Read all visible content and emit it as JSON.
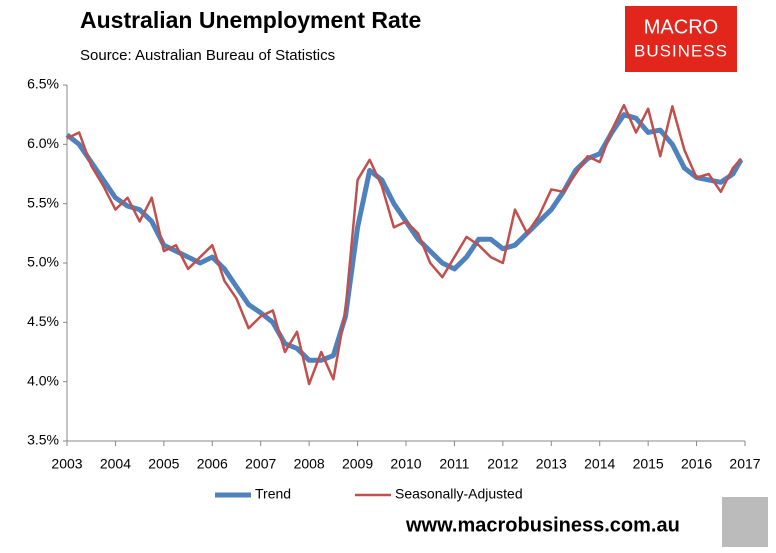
{
  "chart_data": {
    "type": "line",
    "title": "Australian Unemployment Rate",
    "subtitle": "Source: Australian Bureau of Statistics",
    "x": [
      2003,
      2003.25,
      2003.5,
      2003.75,
      2004,
      2004.25,
      2004.5,
      2004.75,
      2005,
      2005.25,
      2005.5,
      2005.75,
      2006,
      2006.25,
      2006.5,
      2006.75,
      2007,
      2007.25,
      2007.5,
      2007.75,
      2008,
      2008.25,
      2008.5,
      2008.75,
      2009,
      2009.25,
      2009.5,
      2009.75,
      2010,
      2010.25,
      2010.5,
      2010.75,
      2011,
      2011.25,
      2011.5,
      2011.75,
      2012,
      2012.25,
      2012.5,
      2012.75,
      2013,
      2013.25,
      2013.5,
      2013.75,
      2014,
      2014.25,
      2014.5,
      2014.75,
      2015,
      2015.25,
      2015.5,
      2015.75,
      2016,
      2016.25,
      2016.5,
      2016.75,
      2016.92
    ],
    "series": [
      {
        "name": "Trend",
        "color": "#4f81bd",
        "width": 5,
        "values": [
          6.08,
          6.0,
          5.85,
          5.7,
          5.55,
          5.48,
          5.45,
          5.35,
          5.15,
          5.1,
          5.05,
          5.0,
          5.05,
          4.95,
          4.8,
          4.65,
          4.58,
          4.5,
          4.32,
          4.28,
          4.18,
          4.18,
          4.22,
          4.55,
          5.3,
          5.78,
          5.7,
          5.5,
          5.35,
          5.2,
          5.1,
          5.0,
          4.95,
          5.05,
          5.2,
          5.2,
          5.12,
          5.15,
          5.25,
          5.35,
          5.45,
          5.6,
          5.78,
          5.88,
          5.92,
          6.1,
          6.25,
          6.22,
          6.1,
          6.12,
          6.0,
          5.8,
          5.72,
          5.7,
          5.68,
          5.75,
          5.87
        ]
      },
      {
        "name": "Seasonally-Adjusted",
        "color": "#c0504d",
        "width": 2.5,
        "values": [
          6.05,
          6.1,
          5.82,
          5.65,
          5.45,
          5.55,
          5.35,
          5.55,
          5.1,
          5.15,
          4.95,
          5.05,
          5.15,
          4.85,
          4.7,
          4.45,
          4.55,
          4.6,
          4.25,
          4.42,
          3.98,
          4.25,
          4.02,
          4.6,
          5.7,
          5.87,
          5.65,
          5.3,
          5.35,
          5.25,
          5.0,
          4.88,
          5.05,
          5.22,
          5.15,
          5.05,
          5.0,
          5.45,
          5.25,
          5.4,
          5.62,
          5.6,
          5.75,
          5.9,
          5.85,
          6.12,
          6.33,
          6.1,
          6.3,
          5.9,
          6.32,
          5.95,
          5.72,
          5.75,
          5.6,
          5.8,
          5.88
        ]
      }
    ],
    "xlim": [
      2003,
      2017
    ],
    "xticks": [
      2003,
      2004,
      2005,
      2006,
      2007,
      2008,
      2009,
      2010,
      2011,
      2012,
      2013,
      2014,
      2015,
      2016,
      2017
    ],
    "ylim": [
      3.5,
      6.5
    ],
    "yticks": [
      {
        "value": 3.5,
        "label": "3.5%"
      },
      {
        "value": 4.0,
        "label": "4.0%"
      },
      {
        "value": 4.5,
        "label": "4.5%"
      },
      {
        "value": 5.0,
        "label": "5.0%"
      },
      {
        "value": 5.5,
        "label": "5.5%"
      },
      {
        "value": 6.0,
        "label": "6.0%"
      },
      {
        "value": 6.5,
        "label": "6.5%"
      }
    ],
    "grid": false,
    "legend": "bottom"
  },
  "logo": {
    "line1": "MACRO",
    "line2": "BUSINESS"
  },
  "footer": "www.macrobusiness.com.au"
}
